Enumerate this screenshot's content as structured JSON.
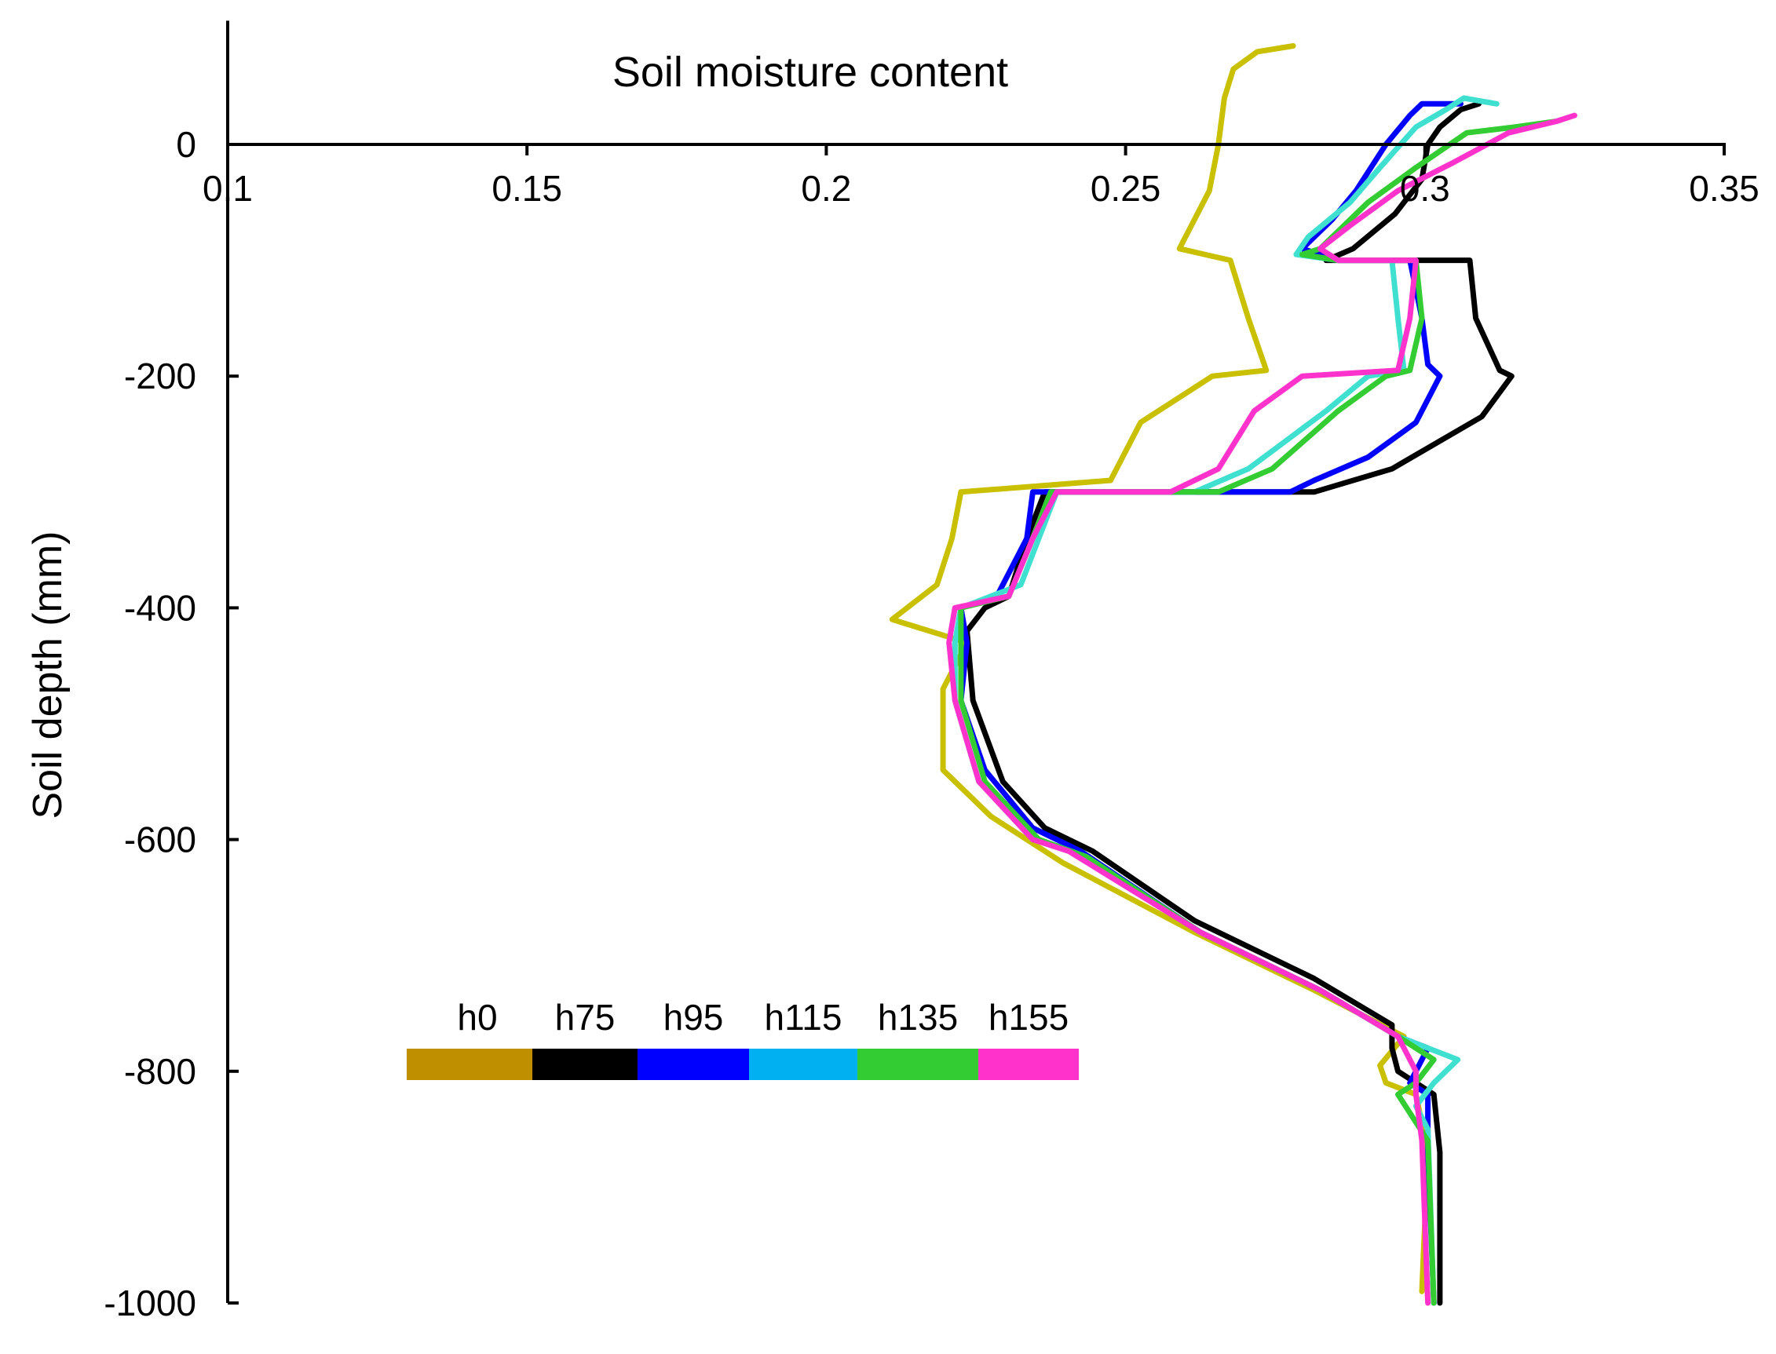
{
  "chart_data": {
    "type": "line",
    "title": "Soil moisture content",
    "xlabel": "",
    "ylabel": "Soil depth (mm)",
    "xlim": [
      0.1,
      0.35
    ],
    "ylim": [
      -1000,
      100
    ],
    "x_ticks": [
      0.1,
      0.15,
      0.2,
      0.25,
      0.3,
      0.35
    ],
    "x_tick_labels": [
      "0.1",
      "0.15",
      "0.2",
      "0.25",
      "0.3",
      "0.35"
    ],
    "y_ticks": [
      0,
      -200,
      -400,
      -600,
      -800,
      -1000
    ],
    "y_tick_labels": [
      "0",
      "-200",
      "-400",
      "-600",
      "-800",
      "-1000"
    ],
    "grid": false,
    "legend_position": "lower-left",
    "series": [
      {
        "name": "h0",
        "legend_color": "#bf8f00",
        "line_color": "#c8c000",
        "points": [
          [
            0.278,
            85
          ],
          [
            0.272,
            80
          ],
          [
            0.268,
            65
          ],
          [
            0.2665,
            40
          ],
          [
            0.2655,
            0
          ],
          [
            0.264,
            -40
          ],
          [
            0.259,
            -90
          ],
          [
            0.2675,
            -100
          ],
          [
            0.2705,
            -150
          ],
          [
            0.2735,
            -195
          ],
          [
            0.2645,
            -200
          ],
          [
            0.2525,
            -240
          ],
          [
            0.2475,
            -290
          ],
          [
            0.2225,
            -300
          ],
          [
            0.221,
            -340
          ],
          [
            0.2185,
            -380
          ],
          [
            0.211,
            -410
          ],
          [
            0.2235,
            -430
          ],
          [
            0.2195,
            -470
          ],
          [
            0.2195,
            -540
          ],
          [
            0.2275,
            -580
          ],
          [
            0.2395,
            -620
          ],
          [
            0.2615,
            -680
          ],
          [
            0.2815,
            -730
          ],
          [
            0.2965,
            -770
          ],
          [
            0.2925,
            -795
          ],
          [
            0.2935,
            -810
          ],
          [
            0.2985,
            -820
          ],
          [
            0.3005,
            -870
          ],
          [
            0.2995,
            -990
          ]
        ]
      },
      {
        "name": "h75",
        "legend_color": "#000000",
        "line_color": "#000000",
        "points": [
          [
            0.309,
            35
          ],
          [
            0.306,
            30
          ],
          [
            0.3025,
            15
          ],
          [
            0.3005,
            0
          ],
          [
            0.2995,
            -30
          ],
          [
            0.295,
            -60
          ],
          [
            0.288,
            -90
          ],
          [
            0.2835,
            -100
          ],
          [
            0.3075,
            -100
          ],
          [
            0.3085,
            -150
          ],
          [
            0.3125,
            -195
          ],
          [
            0.3145,
            -200
          ],
          [
            0.3095,
            -235
          ],
          [
            0.2945,
            -280
          ],
          [
            0.2815,
            -300
          ],
          [
            0.2365,
            -300
          ],
          [
            0.2335,
            -340
          ],
          [
            0.2305,
            -390
          ],
          [
            0.2265,
            -400
          ],
          [
            0.2235,
            -420
          ],
          [
            0.2245,
            -480
          ],
          [
            0.2295,
            -550
          ],
          [
            0.2365,
            -590
          ],
          [
            0.2445,
            -610
          ],
          [
            0.2615,
            -670
          ],
          [
            0.2815,
            -720
          ],
          [
            0.2945,
            -760
          ],
          [
            0.2945,
            -780
          ],
          [
            0.2955,
            -800
          ],
          [
            0.3015,
            -820
          ],
          [
            0.3025,
            -870
          ],
          [
            0.3025,
            -1000
          ]
        ]
      },
      {
        "name": "h95",
        "legend_color": "#0000ff",
        "line_color": "#0000ff",
        "points": [
          [
            0.306,
            35
          ],
          [
            0.2995,
            35
          ],
          [
            0.2975,
            25
          ],
          [
            0.2935,
            0
          ],
          [
            0.2885,
            -40
          ],
          [
            0.2845,
            -65
          ],
          [
            0.2795,
            -90
          ],
          [
            0.2855,
            -100
          ],
          [
            0.2975,
            -100
          ],
          [
            0.2995,
            -150
          ],
          [
            0.3005,
            -190
          ],
          [
            0.3025,
            -200
          ],
          [
            0.2985,
            -240
          ],
          [
            0.2905,
            -270
          ],
          [
            0.2815,
            -290
          ],
          [
            0.2775,
            -300
          ],
          [
            0.2455,
            -300
          ],
          [
            0.2345,
            -300
          ],
          [
            0.2335,
            -340
          ],
          [
            0.2285,
            -390
          ],
          [
            0.2225,
            -400
          ],
          [
            0.2235,
            -430
          ],
          [
            0.2225,
            -480
          ],
          [
            0.2265,
            -540
          ],
          [
            0.2345,
            -590
          ],
          [
            0.2425,
            -610
          ],
          [
            0.2625,
            -680
          ],
          [
            0.2825,
            -730
          ],
          [
            0.2955,
            -770
          ],
          [
            0.3005,
            -780
          ],
          [
            0.2995,
            -790
          ],
          [
            0.2975,
            -810
          ],
          [
            0.3005,
            -820
          ],
          [
            0.3005,
            -870
          ],
          [
            0.3015,
            -1000
          ]
        ]
      },
      {
        "name": "h115",
        "legend_color": "#00b0f0",
        "line_color": "#40e0d0",
        "points": [
          [
            0.312,
            35
          ],
          [
            0.3065,
            40
          ],
          [
            0.3035,
            30
          ],
          [
            0.2985,
            15
          ],
          [
            0.2925,
            -20
          ],
          [
            0.2875,
            -50
          ],
          [
            0.2805,
            -80
          ],
          [
            0.2785,
            -95
          ],
          [
            0.2855,
            -100
          ],
          [
            0.2945,
            -100
          ],
          [
            0.2955,
            -150
          ],
          [
            0.2965,
            -195
          ],
          [
            0.2905,
            -200
          ],
          [
            0.2835,
            -230
          ],
          [
            0.2705,
            -280
          ],
          [
            0.2615,
            -300
          ],
          [
            0.2385,
            -300
          ],
          [
            0.2355,
            -340
          ],
          [
            0.2325,
            -380
          ],
          [
            0.2225,
            -400
          ],
          [
            0.2215,
            -430
          ],
          [
            0.2215,
            -480
          ],
          [
            0.2255,
            -550
          ],
          [
            0.2355,
            -600
          ],
          [
            0.2435,
            -615
          ],
          [
            0.2625,
            -680
          ],
          [
            0.2825,
            -730
          ],
          [
            0.2955,
            -770
          ],
          [
            0.3055,
            -790
          ],
          [
            0.3015,
            -810
          ],
          [
            0.2985,
            -830
          ],
          [
            0.3005,
            -850
          ],
          [
            0.3015,
            -1000
          ]
        ]
      },
      {
        "name": "h135",
        "legend_color": "#33cc33",
        "line_color": "#33cc33",
        "points": [
          [
            0.322,
            20
          ],
          [
            0.315,
            15
          ],
          [
            0.307,
            10
          ],
          [
            0.2985,
            -20
          ],
          [
            0.2905,
            -50
          ],
          [
            0.2825,
            -90
          ],
          [
            0.2795,
            -95
          ],
          [
            0.2855,
            -100
          ],
          [
            0.2985,
            -100
          ],
          [
            0.2995,
            -150
          ],
          [
            0.2975,
            -195
          ],
          [
            0.2935,
            -200
          ],
          [
            0.2855,
            -230
          ],
          [
            0.2745,
            -280
          ],
          [
            0.2655,
            -300
          ],
          [
            0.2375,
            -300
          ],
          [
            0.2345,
            -340
          ],
          [
            0.2305,
            -390
          ],
          [
            0.2225,
            -400
          ],
          [
            0.2225,
            -430
          ],
          [
            0.2225,
            -480
          ],
          [
            0.2265,
            -550
          ],
          [
            0.2355,
            -600
          ],
          [
            0.2435,
            -615
          ],
          [
            0.2625,
            -680
          ],
          [
            0.2825,
            -730
          ],
          [
            0.2955,
            -770
          ],
          [
            0.3015,
            -790
          ],
          [
            0.2985,
            -810
          ],
          [
            0.2955,
            -820
          ],
          [
            0.3005,
            -860
          ],
          [
            0.3015,
            -1000
          ]
        ]
      },
      {
        "name": "h155",
        "legend_color": "#ff33cc",
        "line_color": "#ff33cc",
        "points": [
          [
            0.325,
            25
          ],
          [
            0.322,
            20
          ],
          [
            0.314,
            10
          ],
          [
            0.305,
            -15
          ],
          [
            0.2955,
            -40
          ],
          [
            0.2875,
            -70
          ],
          [
            0.2825,
            -90
          ],
          [
            0.2855,
            -100
          ],
          [
            0.2985,
            -100
          ],
          [
            0.2975,
            -150
          ],
          [
            0.2955,
            -195
          ],
          [
            0.2795,
            -200
          ],
          [
            0.2715,
            -230
          ],
          [
            0.2655,
            -280
          ],
          [
            0.2575,
            -300
          ],
          [
            0.2385,
            -300
          ],
          [
            0.2345,
            -340
          ],
          [
            0.2305,
            -390
          ],
          [
            0.2215,
            -400
          ],
          [
            0.2205,
            -430
          ],
          [
            0.2215,
            -480
          ],
          [
            0.2255,
            -550
          ],
          [
            0.2345,
            -600
          ],
          [
            0.2405,
            -610
          ],
          [
            0.2625,
            -680
          ],
          [
            0.2825,
            -730
          ],
          [
            0.2955,
            -770
          ],
          [
            0.2985,
            -800
          ],
          [
            0.2985,
            -820
          ],
          [
            0.2995,
            -860
          ],
          [
            0.3005,
            -1000
          ]
        ]
      }
    ]
  }
}
